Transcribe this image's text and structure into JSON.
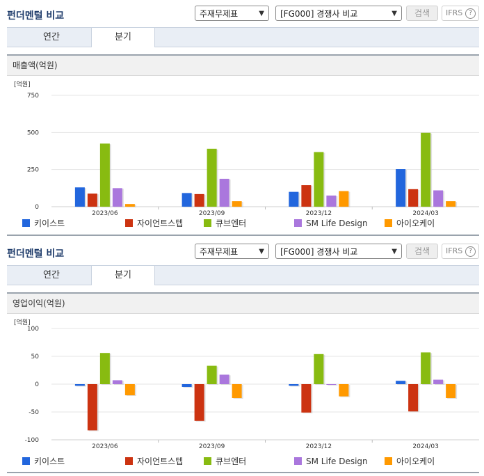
{
  "sections": [
    {
      "title": "펀더멘털 비교",
      "select1": "주재무제표",
      "select2": "[FG000] 경쟁사 비교",
      "search_label": "검색",
      "ifrs_label": "IFRS",
      "ifrs_help": "?",
      "tabs": [
        "연간",
        "분기"
      ],
      "active_tab": 1,
      "metric_title": "매출액(억원)",
      "unit_label": "[억원]"
    },
    {
      "title": "펀더멘털 비교",
      "select1": "주재무제표",
      "select2": "[FG000] 경쟁사 비교",
      "search_label": "검색",
      "ifrs_label": "IFRS",
      "ifrs_help": "?",
      "tabs": [
        "연간",
        "분기"
      ],
      "active_tab": 1,
      "metric_title": "영업이익(억원)",
      "unit_label": "[억원]"
    }
  ],
  "chart_data": [
    {
      "type": "bar",
      "title": "매출액(억원)",
      "ylabel": "[억원]",
      "categories": [
        "2023/06",
        "2023/09",
        "2023/12",
        "2024/03"
      ],
      "ylim": [
        0,
        750
      ],
      "yticks": [
        0,
        250,
        500,
        750
      ],
      "ytick_labels": [
        "0",
        "250",
        "500",
        "750"
      ],
      "grid": true,
      "legend_position": "bottom",
      "series": [
        {
          "name": "키이스트",
          "color": "#2266dd",
          "values": [
            130,
            92,
            100,
            253
          ]
        },
        {
          "name": "자이언트스텝",
          "color": "#cc3311",
          "values": [
            88,
            85,
            145,
            118
          ]
        },
        {
          "name": "큐브엔터",
          "color": "#88bb11",
          "values": [
            425,
            390,
            368,
            498
          ]
        },
        {
          "name": "SM Life Design",
          "color": "#aa77dd",
          "values": [
            125,
            188,
            75,
            110
          ]
        },
        {
          "name": "아이오케이",
          "color": "#ff9900",
          "values": [
            18,
            37,
            105,
            37
          ]
        }
      ]
    },
    {
      "type": "bar",
      "title": "영업이익(억원)",
      "ylabel": "[억원]",
      "categories": [
        "2023/06",
        "2023/09",
        "2023/12",
        "2024/03"
      ],
      "ylim": [
        -100,
        100
      ],
      "yticks": [
        -100,
        -50,
        0,
        50,
        100
      ],
      "ytick_labels": [
        "-100",
        "-50",
        "0",
        "50",
        "100"
      ],
      "grid": true,
      "legend_position": "bottom",
      "series": [
        {
          "name": "키이스트",
          "color": "#2266dd",
          "values": [
            -3,
            -5,
            -3,
            6
          ]
        },
        {
          "name": "자이언트스텝",
          "color": "#cc3311",
          "values": [
            -83,
            -66,
            -51,
            -49
          ]
        },
        {
          "name": "큐브엔터",
          "color": "#88bb11",
          "values": [
            56,
            33,
            54,
            57
          ]
        },
        {
          "name": "SM Life Design",
          "color": "#aa77dd",
          "values": [
            7,
            17,
            0,
            8
          ]
        },
        {
          "name": "아이오케이",
          "color": "#ff9900",
          "values": [
            -20,
            -25,
            -22,
            -25
          ]
        }
      ]
    }
  ]
}
